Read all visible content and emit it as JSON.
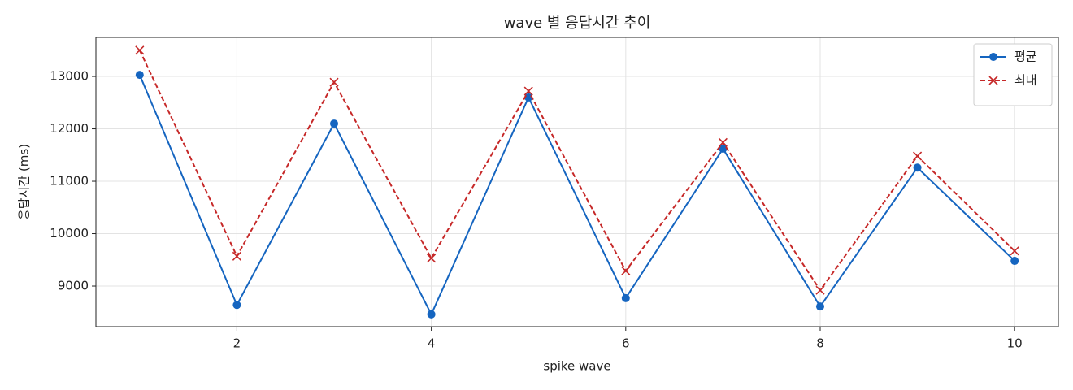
{
  "chart_data": {
    "type": "line",
    "title": "wave 별 응답시간 추이",
    "x_label": "spike wave",
    "y_label": "응답시간 (ms)",
    "x": [
      1,
      2,
      3,
      4,
      5,
      6,
      7,
      8,
      9,
      10
    ],
    "series": [
      {
        "name": "평균",
        "color": "#1565c0",
        "marker": "o",
        "linestyle": "solid",
        "values": [
          13030,
          8640,
          12100,
          8460,
          12600,
          8770,
          11620,
          8610,
          11260,
          9480
        ]
      },
      {
        "name": "최대",
        "color": "#c62828",
        "marker": "x",
        "linestyle": "dashed",
        "values": [
          13500,
          9570,
          12890,
          9530,
          12720,
          9290,
          11740,
          8920,
          11480,
          9670
        ]
      }
    ],
    "xlim": [
      0.55,
      10.45
    ],
    "xticks": [
      2,
      4,
      6,
      8,
      10
    ],
    "ylim": [
      8225,
      13745
    ],
    "yticks": [
      9000,
      10000,
      11000,
      12000,
      13000
    ],
    "grid": true,
    "legend": "upper right"
  }
}
